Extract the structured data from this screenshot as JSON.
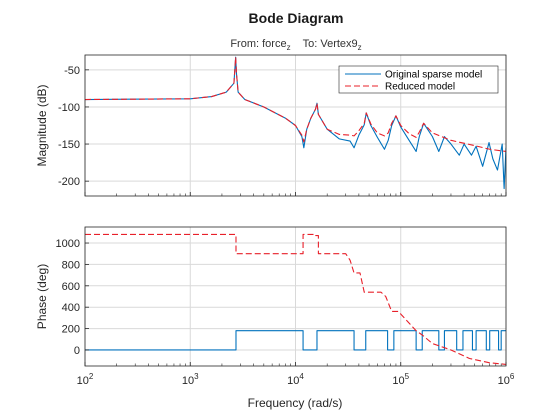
{
  "figure": {
    "title": "Bode Diagram",
    "subtitle_from": "From:",
    "subtitle_from_value": "force",
    "subtitle_from_sub": "z",
    "subtitle_to": "To:",
    "subtitle_to_value": "Vertex9",
    "subtitle_to_sub": "z"
  },
  "colors": {
    "original": "#0072bd",
    "reduced": "#e8202a",
    "grid": "#d9d9d9",
    "axis": "#262626"
  },
  "chart_data": [
    {
      "type": "line",
      "panel": "magnitude",
      "xscale": "log",
      "xlim": [
        100,
        1000000
      ],
      "ylim": [
        -220,
        -30
      ],
      "ylabel": "Magnitude (dB)",
      "yticks": [
        -50,
        -100,
        -150,
        -200
      ],
      "ytick_labels": [
        "-50",
        "-100",
        "-150",
        "-200"
      ],
      "grid": true,
      "legend": {
        "placement": "top-right",
        "entries": [
          "Original sparse model",
          "Reduced model"
        ]
      },
      "series": [
        {
          "name": "Original sparse model",
          "style": "solid",
          "x": [
            100,
            1000,
            1600,
            2200,
            2600,
            2700,
            2750,
            2850,
            3300,
            5000,
            8000,
            10000,
            11500,
            12000,
            12800,
            14000,
            15500,
            16000,
            16500,
            20000,
            26000,
            33000,
            36000,
            40000,
            45000,
            47000,
            52000,
            60000,
            70000,
            76000,
            82000,
            90000,
            100000,
            120000,
            140000,
            150000,
            165000,
            200000,
            230000,
            260000,
            300000,
            360000,
            400000,
            470000,
            520000,
            600000,
            690000,
            750000,
            830000,
            920000,
            960000,
            1000000
          ],
          "y": [
            -90,
            -89,
            -86,
            -80,
            -68,
            -33,
            -55,
            -80,
            -90,
            -100,
            -115,
            -125,
            -140,
            -155,
            -130,
            -115,
            -103,
            -95,
            -110,
            -130,
            -143,
            -146,
            -155,
            -138,
            -124,
            -108,
            -125,
            -141,
            -157,
            -145,
            -125,
            -112,
            -127,
            -145,
            -160,
            -140,
            -122,
            -140,
            -160,
            -140,
            -150,
            -165,
            -150,
            -165,
            -153,
            -180,
            -148,
            -170,
            -185,
            -150,
            -210,
            -155
          ]
        },
        {
          "name": "Reduced model",
          "style": "dashed",
          "x": [
            100,
            1000,
            1600,
            2200,
            2600,
            2700,
            2750,
            2850,
            3300,
            5000,
            8000,
            10000,
            11500,
            12000,
            12800,
            14000,
            15500,
            16000,
            16500,
            20000,
            26000,
            33000,
            36000,
            40000,
            45000,
            47000,
            52000,
            60000,
            70000,
            76000,
            82000,
            90000,
            100000,
            120000,
            140000,
            150000,
            165000,
            200000,
            300000,
            500000,
            700000,
            1000000
          ],
          "y": [
            -90,
            -89,
            -86,
            -80,
            -68,
            -33,
            -55,
            -80,
            -90,
            -100,
            -115,
            -125,
            -138,
            -147,
            -130,
            -115,
            -103,
            -95,
            -110,
            -130,
            -137,
            -138,
            -139,
            -132,
            -122,
            -108,
            -123,
            -135,
            -139,
            -135,
            -122,
            -112,
            -125,
            -136,
            -141,
            -134,
            -122,
            -135,
            -145,
            -152,
            -157,
            -160
          ]
        }
      ]
    },
    {
      "type": "line",
      "panel": "phase",
      "xscale": "log",
      "xlim": [
        100,
        1000000
      ],
      "ylim": [
        -150,
        1150
      ],
      "xlabel": "Frequency (rad/s)",
      "ylabel": "Phase (deg)",
      "xticks": [
        100,
        1000,
        10000,
        100000,
        1000000
      ],
      "xtick_labels": [
        {
          "base": "10",
          "exp": "2"
        },
        {
          "base": "10",
          "exp": "3"
        },
        {
          "base": "10",
          "exp": "4"
        },
        {
          "base": "10",
          "exp": "5"
        },
        {
          "base": "10",
          "exp": "6"
        }
      ],
      "yticks": [
        0,
        200,
        400,
        600,
        800,
        1000
      ],
      "ytick_labels": [
        "0",
        "200",
        "400",
        "600",
        "800",
        "1000"
      ],
      "grid": true,
      "series": [
        {
          "name": "Original sparse model",
          "style": "solid",
          "x": [
            100,
            2720,
            2720,
            11800,
            11800,
            16000,
            16000,
            36000,
            36000,
            46500,
            46500,
            75000,
            75000,
            86000,
            86000,
            140000,
            140000,
            160000,
            160000,
            230000,
            230000,
            260000,
            260000,
            340000,
            340000,
            390000,
            390000,
            480000,
            480000,
            520000,
            520000,
            650000,
            650000,
            700000,
            700000,
            850000,
            850000,
            900000,
            900000,
            1000000
          ],
          "y": [
            0,
            0,
            180,
            180,
            0,
            0,
            180,
            180,
            0,
            0,
            180,
            180,
            0,
            0,
            180,
            180,
            0,
            0,
            180,
            180,
            0,
            0,
            180,
            180,
            0,
            0,
            180,
            180,
            0,
            0,
            180,
            180,
            0,
            0,
            180,
            180,
            0,
            0,
            180,
            180
          ]
        },
        {
          "name": "Reduced model",
          "style": "dashed",
          "x": [
            100,
            2720,
            2720,
            11800,
            11800,
            15500,
            15500,
            16500,
            16500,
            30000,
            33000,
            36000,
            41000,
            45000,
            47000,
            65000,
            72000,
            82000,
            95000,
            140000,
            160000,
            200000,
            300000,
            450000,
            700000,
            1000000
          ],
          "y": [
            1080,
            1080,
            900,
            900,
            1080,
            1080,
            1070,
            1070,
            900,
            900,
            840,
            720,
            720,
            540,
            540,
            540,
            500,
            360,
            360,
            180,
            140,
            60,
            0,
            -80,
            -120,
            -135
          ]
        }
      ]
    }
  ]
}
